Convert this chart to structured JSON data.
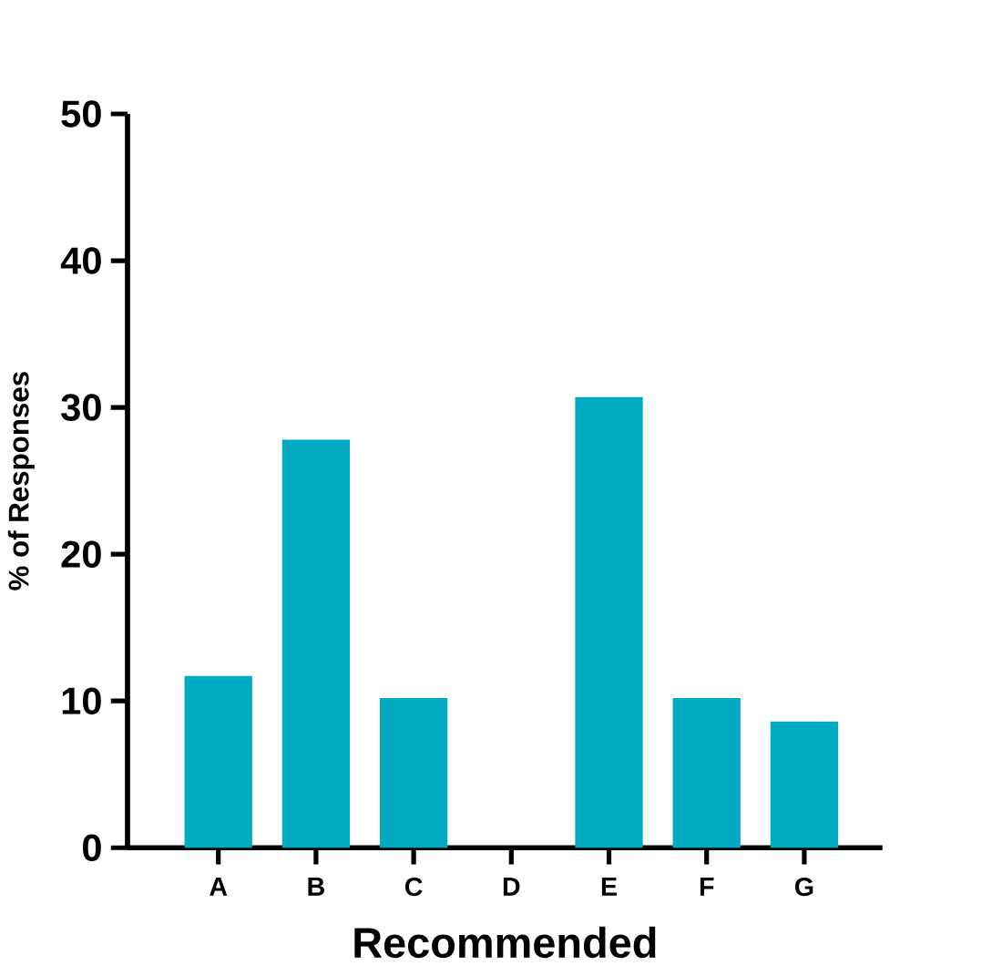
{
  "chart_data": {
    "type": "bar",
    "xlabel": "Recommended",
    "ylabel": "% of Responses",
    "categories": [
      "A",
      "B",
      "C",
      "D",
      "E",
      "F",
      "G"
    ],
    "values": [
      11.7,
      27.8,
      10.2,
      0,
      30.7,
      10.2,
      8.6
    ],
    "color": "#00aac2",
    "ylim": [
      0,
      50
    ],
    "yticks": [
      0,
      10,
      20,
      30,
      40,
      50
    ],
    "grid": false
  }
}
